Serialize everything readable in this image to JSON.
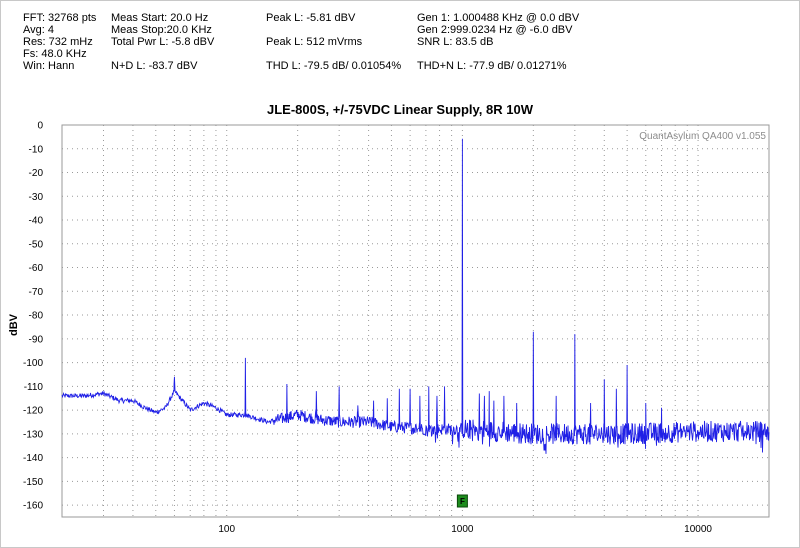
{
  "stats": {
    "fft": "FFT: 32768 pts",
    "avg": "Avg: 4",
    "res": "Res: 732 mHz",
    "fs": "Fs: 48.0 KHz",
    "win": "Win: Hann",
    "meas_start": "Meas Start: 20.0 Hz",
    "meas_stop": "Meas Stop:20.0 KHz",
    "total_pwr": "Total Pwr L: -5.8 dBV",
    "nd": "N+D L: -83.7 dBV",
    "peak_dbv": "Peak L: -5.81 dBV",
    "peak_vrms": "Peak L: 512 mVrms",
    "thd": "THD L: -79.5 dB/ 0.01054%",
    "gen1": "Gen 1: 1.000488 KHz @ 0.0  dBV",
    "gen2": "Gen 2:999.0234 Hz @ -6.0  dBV",
    "snr": "SNR L: 83.5 dB",
    "thdn": "THD+N L: -77.9 dB/ 0.01271%"
  },
  "watermark": "QuantAsylum QA400 v1.055",
  "fundamental_flag": "F",
  "colors": {
    "trace": "#2020e6",
    "grid": "#9a9a9a",
    "flag_fill": "#1e8c1e"
  },
  "chart_data": {
    "type": "line",
    "title": "JLE-800S, +/-75VDC Linear Supply, 8R 10W",
    "xlabel": "",
    "ylabel": "dBV",
    "x_scale": "log",
    "xlim": [
      20,
      20000
    ],
    "ylim": [
      -165,
      0
    ],
    "x_ticks": [
      100,
      1000,
      10000
    ],
    "x_tick_labels": [
      "100",
      "1000",
      "10000"
    ],
    "y_ticks": [
      0,
      -10,
      -20,
      -30,
      -40,
      -50,
      -60,
      -70,
      -80,
      -90,
      -100,
      -110,
      -120,
      -130,
      -140,
      -150,
      -160
    ],
    "y_tick_labels": [
      "0",
      "-10",
      "-20",
      "-30",
      "-40",
      "-50",
      "-60",
      "-70",
      "-80",
      "-90",
      "-100",
      "-110",
      "-120",
      "-130",
      "-140",
      "-150",
      "-160"
    ],
    "grid": true,
    "noise_floor": {
      "x": [
        20,
        25,
        30,
        35,
        40,
        45,
        50,
        55,
        60,
        70,
        80,
        90,
        100,
        120,
        150,
        200,
        250,
        300,
        400,
        500,
        700,
        1000,
        2000,
        5000,
        10000,
        20000
      ],
      "y": [
        -114,
        -114,
        -113,
        -116,
        -116,
        -119,
        -121,
        -119,
        -112,
        -120,
        -117,
        -119,
        -122,
        -122,
        -125,
        -122,
        -124,
        -125,
        -125,
        -127,
        -128,
        -128,
        -130,
        -130,
        -129,
        -129
      ]
    },
    "peaks": {
      "x": [
        60,
        120,
        180,
        240,
        300,
        360,
        420,
        480,
        540,
        600,
        660,
        720,
        780,
        840,
        1000,
        1180,
        1240,
        1300,
        1360,
        1500,
        1700,
        2000,
        2500,
        3000,
        3500,
        4000,
        4500,
        5000,
        6000,
        7000
      ],
      "y": [
        -106,
        -98,
        -109,
        -112,
        -110,
        -118,
        -116,
        -115,
        -111,
        -111,
        -114,
        -110,
        -114,
        -110,
        -5.8,
        -113,
        -114,
        -112,
        -116,
        -114,
        -117,
        -87,
        -114,
        -88,
        -117,
        -107,
        -111,
        -101,
        -117,
        -119
      ]
    }
  }
}
